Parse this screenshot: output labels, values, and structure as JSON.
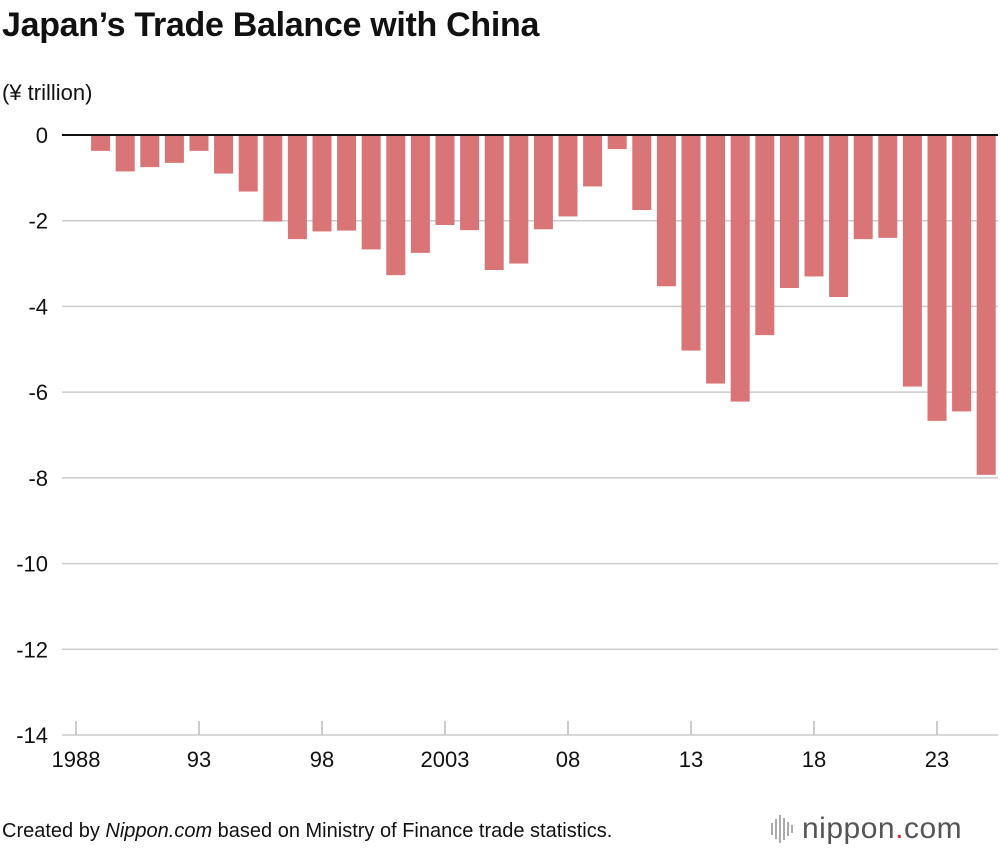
{
  "title": "Japan’s Trade Balance with China",
  "footer": {
    "prefix": "Created by ",
    "brand": "Nippon.com",
    "suffix": " based on Ministry of Finance trade statistics."
  },
  "logo": {
    "name": "nippon",
    "dot": ".",
    "tld": "com"
  },
  "colors": {
    "bar": "#d97477",
    "grid": "#cccccc",
    "zero": "#111111"
  },
  "chart_data": {
    "type": "bar",
    "title": "Japan’s Trade Balance with China",
    "ylabel": "(¥ trillion)",
    "xlabel": "",
    "ylim": [
      -14,
      0
    ],
    "yticks": [
      "0",
      "-2",
      "-4",
      "-6",
      "-8",
      "-10",
      "-12",
      "-14"
    ],
    "ytick_values": [
      0,
      -2,
      -4,
      -6,
      -8,
      -10,
      -12,
      -14
    ],
    "x_tick_labels": [
      {
        "year": 1988,
        "label": "1988"
      },
      {
        "year": 1993,
        "label": "93"
      },
      {
        "year": 1998,
        "label": "98"
      },
      {
        "year": 2003,
        "label": "2003"
      },
      {
        "year": 2008,
        "label": "08"
      },
      {
        "year": 2013,
        "label": "13"
      },
      {
        "year": 2018,
        "label": "18"
      },
      {
        "year": 2023,
        "label": "23"
      }
    ],
    "categories": [
      1988,
      1989,
      1990,
      1991,
      1992,
      1993,
      1994,
      1995,
      1996,
      1997,
      1998,
      1999,
      2000,
      2001,
      2002,
      2003,
      2004,
      2005,
      2006,
      2007,
      2008,
      2009,
      2010,
      2011,
      2012,
      2013,
      2014,
      2015,
      2016,
      2017,
      2018,
      2019,
      2020,
      2021,
      2022,
      2023,
      2024,
      2025
    ],
    "values": [
      0.0,
      -0.37,
      -0.85,
      -0.75,
      -0.65,
      -0.37,
      -0.9,
      -1.32,
      -2.02,
      -2.43,
      -2.25,
      -2.23,
      -2.67,
      -3.27,
      -2.75,
      -2.1,
      -2.22,
      -3.15,
      -3.0,
      -2.2,
      -1.9,
      -1.2,
      -0.33,
      -1.75,
      -3.53,
      -5.03,
      -5.8,
      -6.22,
      -4.67,
      -3.57,
      -3.3,
      -3.78,
      -2.43,
      -2.4,
      -5.87,
      -6.67,
      -6.45,
      -7.93
    ],
    "grid": true,
    "legend": "none"
  }
}
